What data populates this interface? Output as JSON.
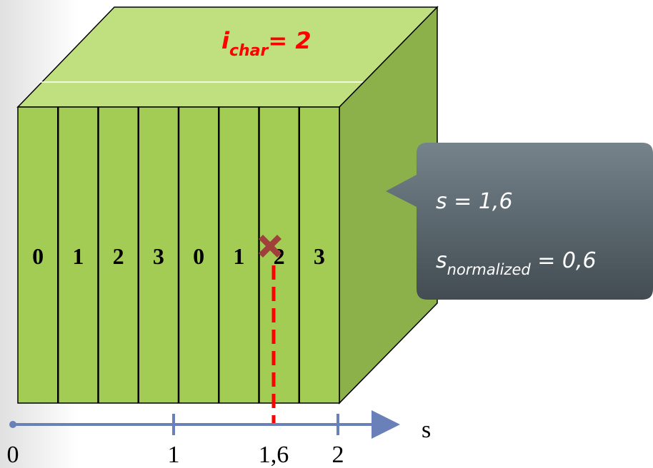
{
  "cube": {
    "top_label": {
      "base": "i",
      "subscript": "char",
      "rest": "= 2"
    },
    "columns": [
      "0",
      "1",
      "2",
      "3",
      "0",
      "1",
      "2",
      "3"
    ]
  },
  "callout": {
    "line1": "s = 1,6",
    "line2": {
      "base": "s",
      "subscript": "normalized",
      "rest": " = 0,6"
    }
  },
  "axis": {
    "label": "s",
    "ticks": [
      "0",
      "1",
      "1,6",
      "2"
    ]
  }
}
